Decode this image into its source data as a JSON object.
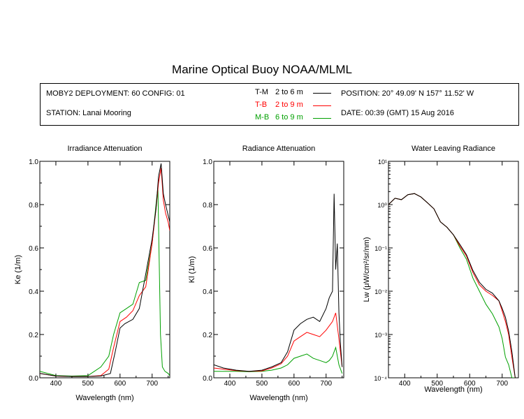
{
  "header": {
    "title": "Marine Optical Buoy NOAA/MLML",
    "deployment": "MOBY2 DEPLOYMENT: 60 CONFIG: 01",
    "station": "STATION: Lanai Mooring",
    "position": "POSITION: 20° 49.09' N   157° 11.52' W",
    "date": "DATE: 00:39 (GMT) 15 Aug 2016",
    "legend": [
      {
        "label": "T-M",
        "range": "2 to 6  m",
        "color": "#000000"
      },
      {
        "label": "T-B",
        "range": "2 to 9  m",
        "color": "#ff0000"
      },
      {
        "label": "M-B",
        "range": "6 to 9  m",
        "color": "#00a000"
      }
    ]
  },
  "chart_data": [
    {
      "type": "line",
      "title": "Irradiance Attenuation",
      "xlabel": "Wavelength (nm)",
      "ylabel": "Ke  (1/m)",
      "xlim": [
        350,
        755
      ],
      "ylim": [
        0,
        1.0
      ],
      "xticks": [
        400,
        500,
        600,
        700
      ],
      "yticks": [
        0.0,
        0.2,
        0.4,
        0.6,
        0.8,
        1.0
      ],
      "ytick_labels": [
        "0.0",
        "0.2",
        "0.4",
        "0.6",
        "0.8",
        "1.0"
      ],
      "series": [
        {
          "name": "T-M",
          "color": "#000000",
          "x": [
            350,
            400,
            450,
            500,
            540,
            570,
            585,
            600,
            615,
            640,
            660,
            680,
            700,
            712,
            720,
            728,
            735,
            742,
            750,
            755
          ],
          "y": [
            0.02,
            0.008,
            0.006,
            0.006,
            0.008,
            0.02,
            0.12,
            0.23,
            0.25,
            0.27,
            0.32,
            0.48,
            0.64,
            0.78,
            0.93,
            0.99,
            0.85,
            0.8,
            0.75,
            0.72
          ]
        },
        {
          "name": "T-B",
          "color": "#ff0000",
          "x": [
            350,
            400,
            450,
            500,
            540,
            565,
            580,
            600,
            620,
            640,
            660,
            680,
            700,
            712,
            720,
            728,
            735,
            742,
            750,
            755
          ],
          "y": [
            0.02,
            0.008,
            0.006,
            0.006,
            0.01,
            0.04,
            0.14,
            0.26,
            0.28,
            0.31,
            0.38,
            0.42,
            0.62,
            0.78,
            0.9,
            0.97,
            0.82,
            0.76,
            0.72,
            0.68
          ]
        },
        {
          "name": "M-B",
          "color": "#00a000",
          "x": [
            350,
            400,
            450,
            500,
            540,
            565,
            580,
            600,
            620,
            640,
            660,
            680,
            700,
            712,
            718,
            722,
            726,
            732,
            740,
            750,
            755
          ],
          "y": [
            0.03,
            0.01,
            0.008,
            0.01,
            0.05,
            0.1,
            0.2,
            0.3,
            0.32,
            0.34,
            0.44,
            0.45,
            0.62,
            0.8,
            0.88,
            0.55,
            0.2,
            0.05,
            0.03,
            0.02,
            0.01
          ]
        }
      ]
    },
    {
      "type": "line",
      "title": "Radiance Attenuation",
      "xlabel": "Wavelength (nm)",
      "ylabel": "Kl  (1/m)",
      "xlim": [
        350,
        755
      ],
      "ylim": [
        0,
        1.0
      ],
      "xticks": [
        400,
        500,
        600,
        700
      ],
      "yticks": [
        0.0,
        0.2,
        0.4,
        0.6,
        0.8,
        1.0
      ],
      "ytick_labels": [
        "0.0",
        "0.2",
        "0.4",
        "0.6",
        "0.8",
        "1.0"
      ],
      "series": [
        {
          "name": "T-M",
          "color": "#000000",
          "x": [
            350,
            380,
            420,
            460,
            500,
            530,
            560,
            580,
            600,
            620,
            640,
            660,
            680,
            700,
            710,
            720,
            725,
            730,
            735,
            740,
            745,
            750
          ],
          "y": [
            0.06,
            0.045,
            0.035,
            0.03,
            0.035,
            0.05,
            0.07,
            0.12,
            0.22,
            0.25,
            0.27,
            0.28,
            0.26,
            0.32,
            0.37,
            0.4,
            0.85,
            0.5,
            0.62,
            0.3,
            0.15,
            0.05
          ]
        },
        {
          "name": "T-B",
          "color": "#ff0000",
          "x": [
            350,
            380,
            420,
            460,
            500,
            530,
            560,
            580,
            600,
            620,
            640,
            660,
            680,
            700,
            710,
            720,
            730,
            740,
            750
          ],
          "y": [
            0.045,
            0.04,
            0.033,
            0.03,
            0.032,
            0.045,
            0.065,
            0.1,
            0.17,
            0.19,
            0.21,
            0.2,
            0.19,
            0.22,
            0.24,
            0.26,
            0.3,
            0.18,
            0.05
          ]
        },
        {
          "name": "M-B",
          "color": "#00a000",
          "x": [
            350,
            380,
            420,
            460,
            500,
            530,
            560,
            580,
            600,
            620,
            640,
            660,
            680,
            700,
            710,
            720,
            730,
            740,
            750
          ],
          "y": [
            0.03,
            0.03,
            0.03,
            0.028,
            0.03,
            0.035,
            0.045,
            0.06,
            0.09,
            0.1,
            0.11,
            0.09,
            0.08,
            0.07,
            0.08,
            0.1,
            0.14,
            0.06,
            0.02
          ]
        }
      ]
    },
    {
      "type": "line",
      "title": "Water Leaving Radiance",
      "xlabel": "Wavelength (nm)",
      "ylabel": "Lw  (μW/cm²/sr/nm)",
      "xlim": [
        350,
        750
      ],
      "ylim": [
        0.0001,
        10
      ],
      "yscale": "log",
      "xticks": [
        400,
        500,
        600,
        700
      ],
      "yticks": [
        0.0001,
        0.001,
        0.01,
        0.1,
        1,
        10
      ],
      "ytick_labels": [
        "10⁻⁴",
        "10⁻³",
        "10⁻²",
        "10⁻¹",
        "10⁰",
        "10¹"
      ],
      "series": [
        {
          "name": "T-M",
          "color": "#000000",
          "x": [
            350,
            370,
            390,
            410,
            430,
            450,
            470,
            490,
            510,
            530,
            550,
            570,
            590,
            610,
            630,
            650,
            670,
            690,
            700,
            710,
            720,
            730,
            740
          ],
          "y": [
            1.0,
            1.4,
            1.3,
            1.7,
            1.8,
            1.5,
            1.1,
            0.8,
            0.4,
            0.3,
            0.2,
            0.12,
            0.07,
            0.03,
            0.016,
            0.011,
            0.009,
            0.006,
            0.004,
            0.0025,
            0.0012,
            0.0004,
            0.0001
          ]
        },
        {
          "name": "T-B",
          "color": "#ff0000",
          "x": [
            350,
            370,
            390,
            410,
            430,
            450,
            470,
            490,
            510,
            530,
            550,
            570,
            590,
            610,
            630,
            650,
            670,
            690,
            700,
            710,
            720,
            730,
            740
          ],
          "y": [
            1.0,
            1.4,
            1.3,
            1.7,
            1.8,
            1.5,
            1.1,
            0.8,
            0.4,
            0.3,
            0.2,
            0.11,
            0.065,
            0.027,
            0.014,
            0.01,
            0.008,
            0.006,
            0.0035,
            0.002,
            0.001,
            0.0003,
            0.0001
          ]
        },
        {
          "name": "M-B",
          "color": "#00a000",
          "x": [
            350,
            370,
            390,
            410,
            430,
            450,
            470,
            490,
            510,
            530,
            550,
            570,
            590,
            610,
            630,
            650,
            670,
            690,
            700,
            710,
            720,
            730,
            740
          ],
          "y": [
            1.0,
            1.4,
            1.3,
            1.7,
            1.8,
            1.5,
            1.1,
            0.8,
            0.4,
            0.3,
            0.2,
            0.1,
            0.055,
            0.02,
            0.01,
            0.005,
            0.003,
            0.0015,
            0.0008,
            0.0003,
            0.0002,
            0.0001,
            0.0001
          ]
        }
      ]
    }
  ]
}
